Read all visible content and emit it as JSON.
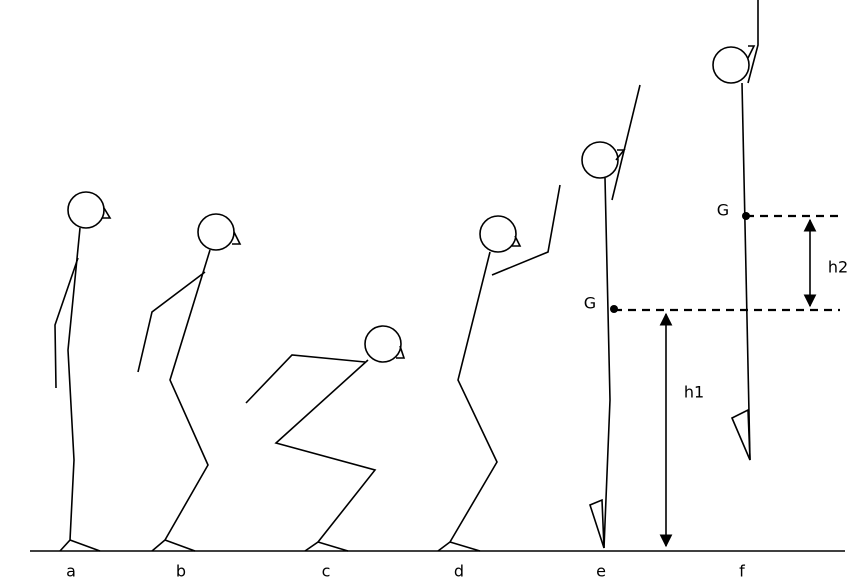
{
  "labels": [
    "a",
    "b",
    "c",
    "d",
    "e",
    "f"
  ],
  "markers": [
    "G",
    "G"
  ],
  "heights": [
    "h1",
    "h2"
  ]
}
